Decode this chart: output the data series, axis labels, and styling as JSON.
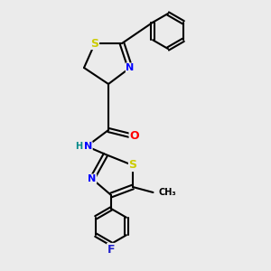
{
  "background_color": "#ebebeb",
  "bond_color": "#000000",
  "bond_width": 1.5,
  "atom_colors": {
    "S": "#cccc00",
    "N": "#0000ff",
    "O": "#ff0000",
    "F": "#2222cc",
    "C": "#000000",
    "H": "#008888"
  },
  "font_size": 8,
  "fig_size": [
    3.0,
    3.0
  ],
  "dpi": 100
}
